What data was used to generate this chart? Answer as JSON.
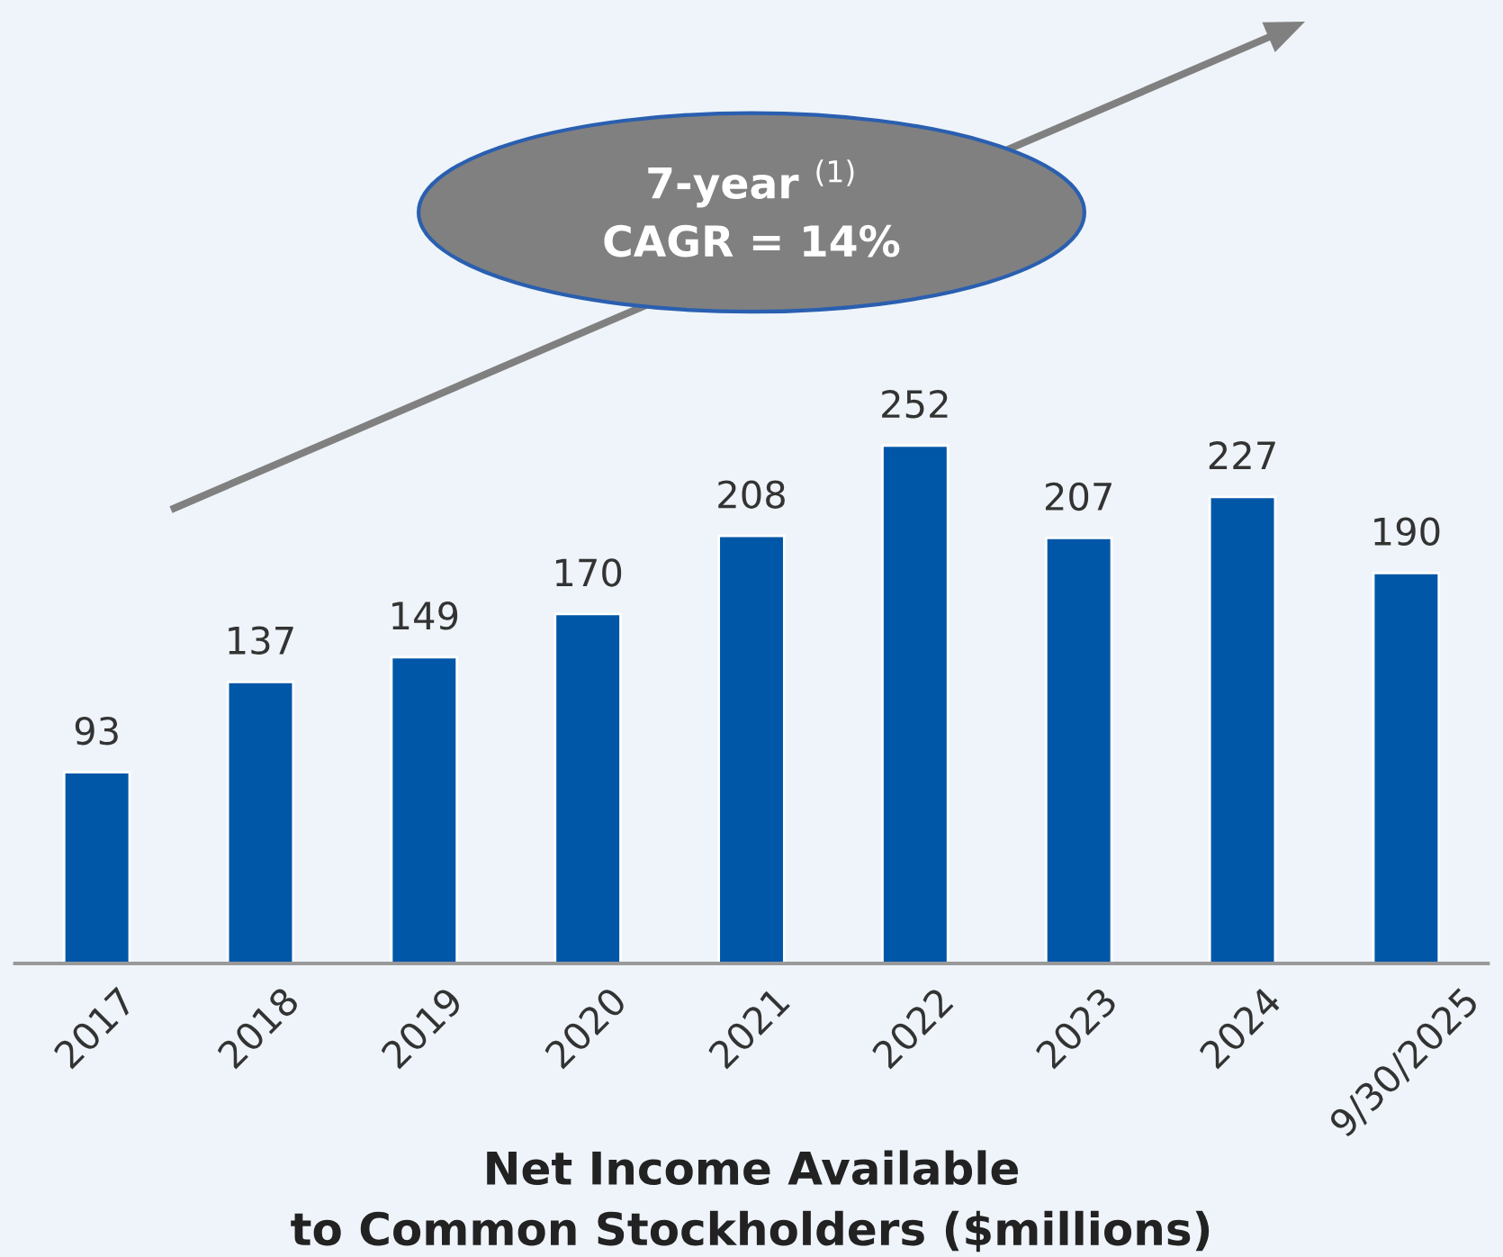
{
  "chart_data": {
    "type": "bar",
    "categories": [
      "2017",
      "2018",
      "2019",
      "2020",
      "2021",
      "2022",
      "2023",
      "2024",
      "9/30/2025"
    ],
    "values": [
      93,
      137,
      149,
      170,
      208,
      252,
      207,
      227,
      190
    ],
    "color": "#0057a8",
    "data_labels": true,
    "tick_labels": "x",
    "grid": false,
    "legend": false,
    "xlabel": "Net Income Available\nto Common Stockholders ($millions)",
    "annotations": [
      "7-year $^{(1)}$\nCAGR = 14%"
    ]
  }
}
